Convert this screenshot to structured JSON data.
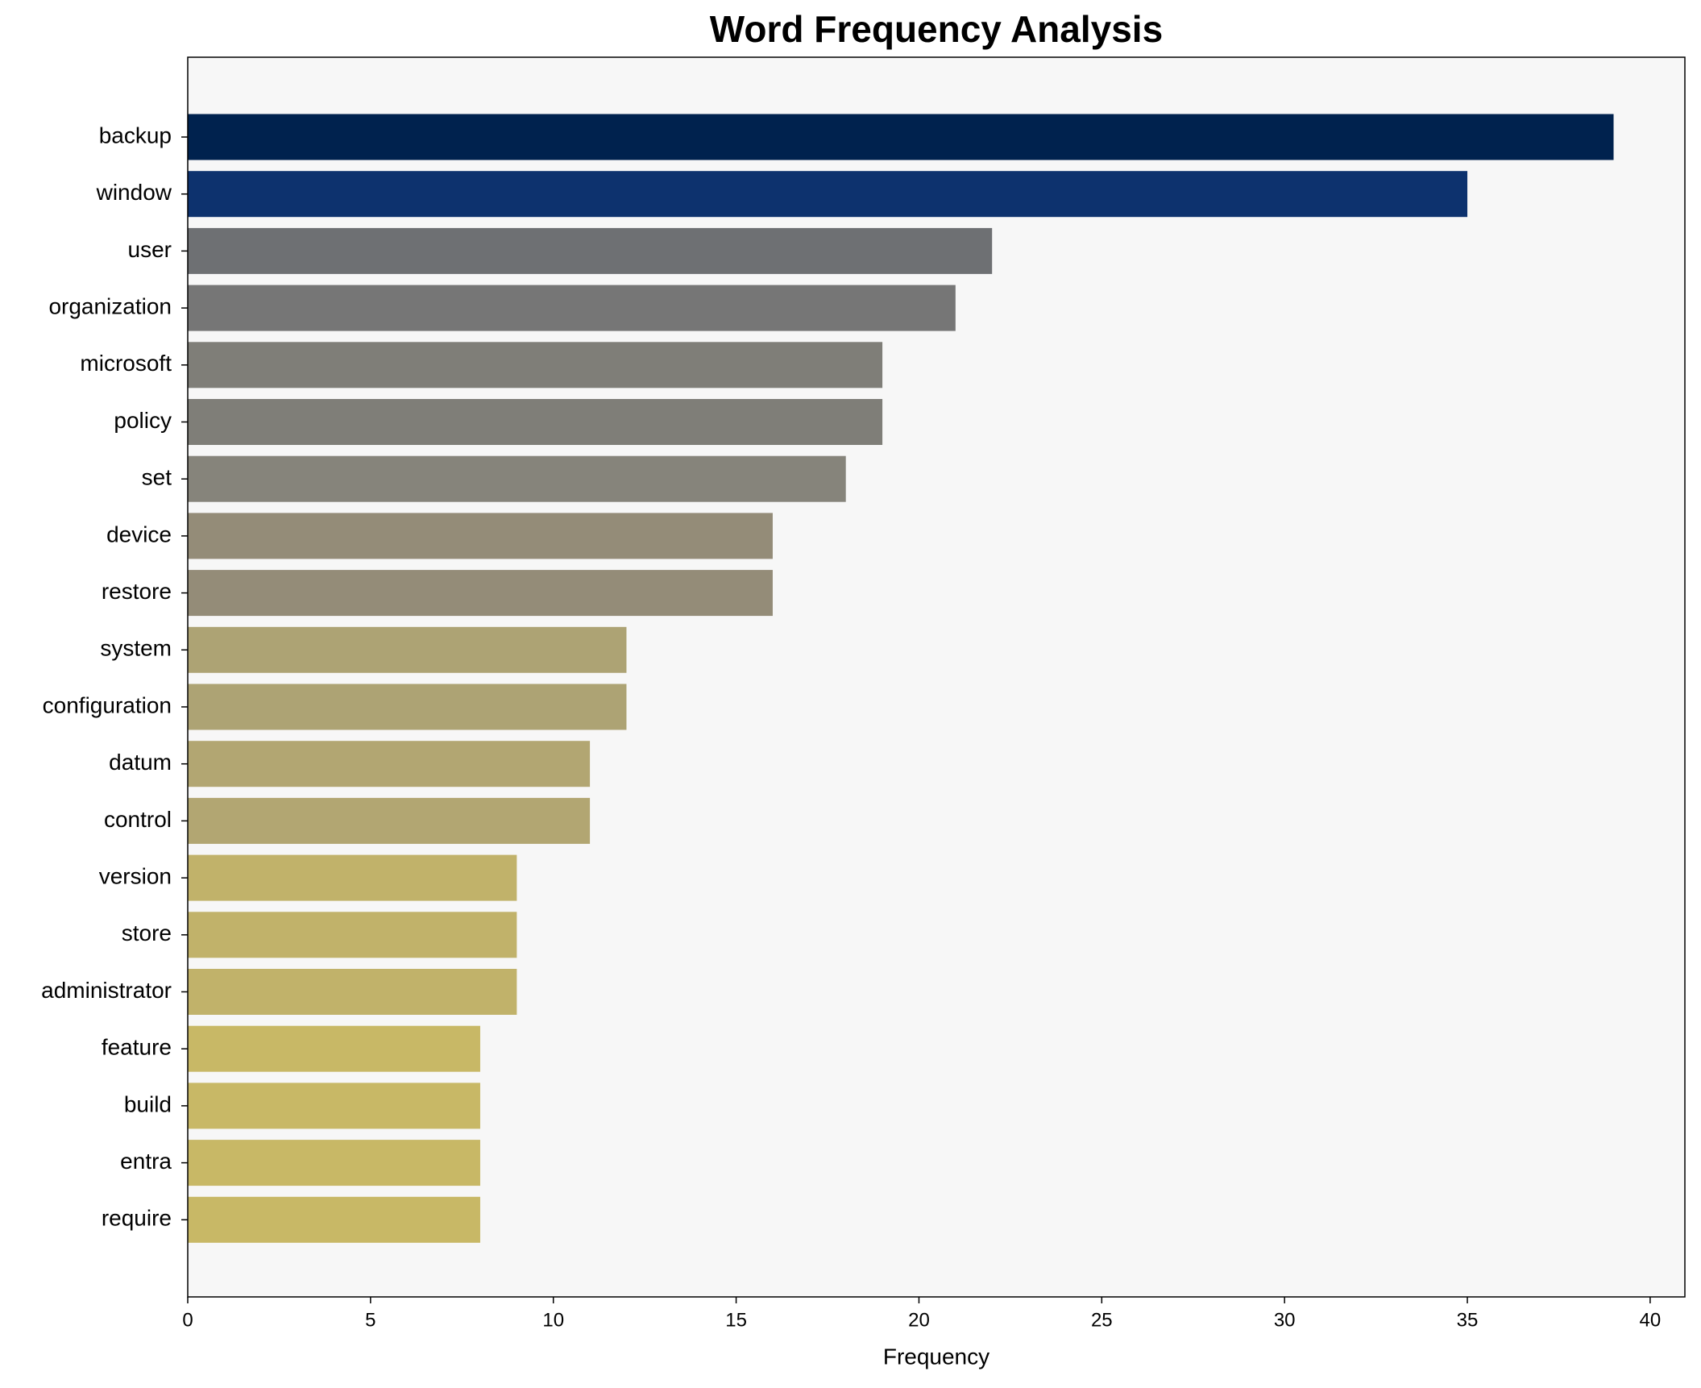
{
  "chart_data": {
    "type": "barh",
    "title": "Word Frequency Analysis",
    "xlabel": "Frequency",
    "categories": [
      "backup",
      "window",
      "user",
      "organization",
      "microsoft",
      "policy",
      "set",
      "device",
      "restore",
      "system",
      "configuration",
      "datum",
      "control",
      "version",
      "store",
      "administrator",
      "feature",
      "build",
      "entra",
      "require"
    ],
    "values": [
      39,
      35,
      22,
      21,
      19,
      19,
      18,
      16,
      16,
      12,
      12,
      11,
      11,
      9,
      9,
      9,
      8,
      8,
      8,
      8
    ],
    "colors": [
      "#00224e",
      "#0d326e",
      "#6e7073",
      "#767676",
      "#7f7e78",
      "#7f7e78",
      "#86847b",
      "#948c78",
      "#948c78",
      "#ada374",
      "#ada374",
      "#b2a672",
      "#b2a672",
      "#c1b26a",
      "#c1b26a",
      "#c1b26a",
      "#c8b866",
      "#c8b866",
      "#c8b866",
      "#c8b866"
    ],
    "xlim": [
      0,
      40.95
    ],
    "xticks": [
      0,
      5,
      10,
      15,
      20,
      25,
      30,
      35,
      40
    ],
    "grid": false
  }
}
